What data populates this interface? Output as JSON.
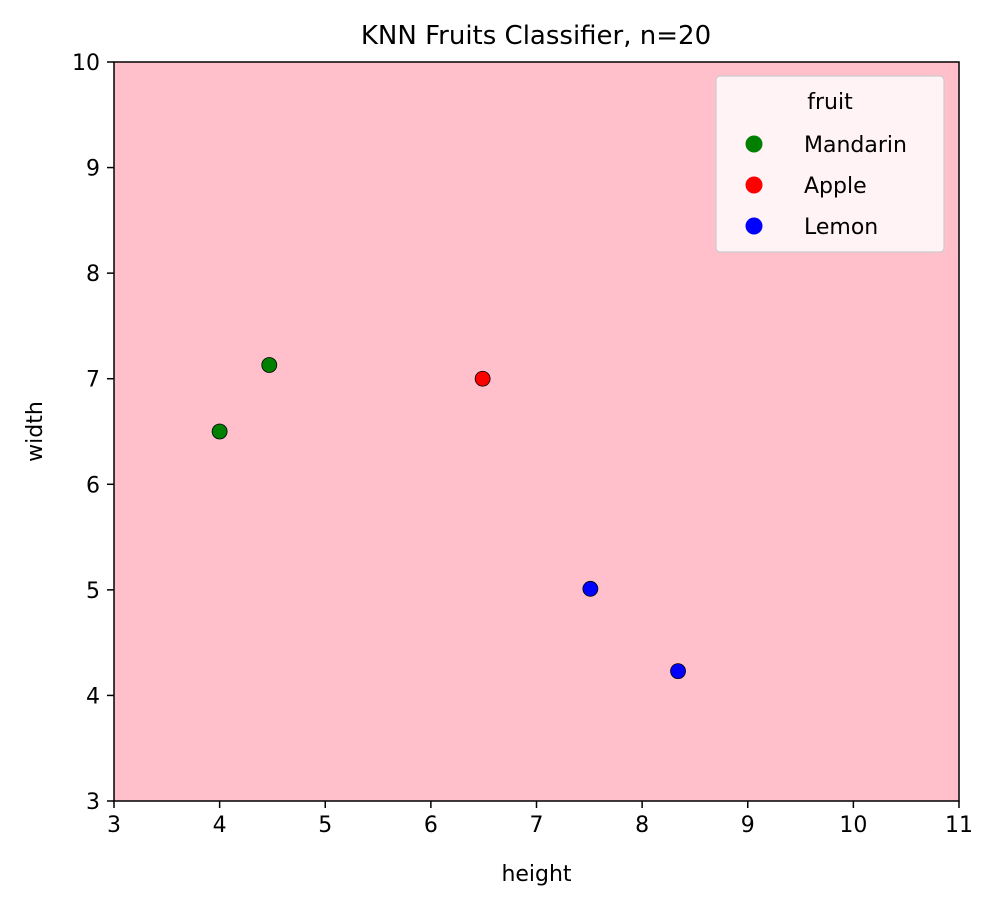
{
  "chart_data": {
    "type": "scatter",
    "title": "KNN Fruits Classifier, n=20",
    "xlabel": "height",
    "ylabel": "width",
    "xlim": [
      3,
      11
    ],
    "ylim": [
      3,
      10
    ],
    "xticks": [
      3,
      4,
      5,
      6,
      7,
      8,
      9,
      10,
      11
    ],
    "yticks": [
      3,
      4,
      5,
      6,
      7,
      8,
      9,
      10
    ],
    "grid": false,
    "background_color": "#ffc0cb",
    "legend": {
      "title": "fruit",
      "placement": "top-right"
    },
    "series": [
      {
        "name": "Mandarin",
        "color": "#008000",
        "points": [
          [
            4.0,
            6.5
          ],
          [
            4.47,
            7.13
          ]
        ]
      },
      {
        "name": "Apple",
        "color": "#ff0000",
        "points": [
          [
            6.49,
            7.0
          ]
        ]
      },
      {
        "name": "Lemon",
        "color": "#0000ff",
        "points": [
          [
            7.51,
            5.01
          ],
          [
            8.34,
            4.23
          ]
        ]
      }
    ]
  }
}
